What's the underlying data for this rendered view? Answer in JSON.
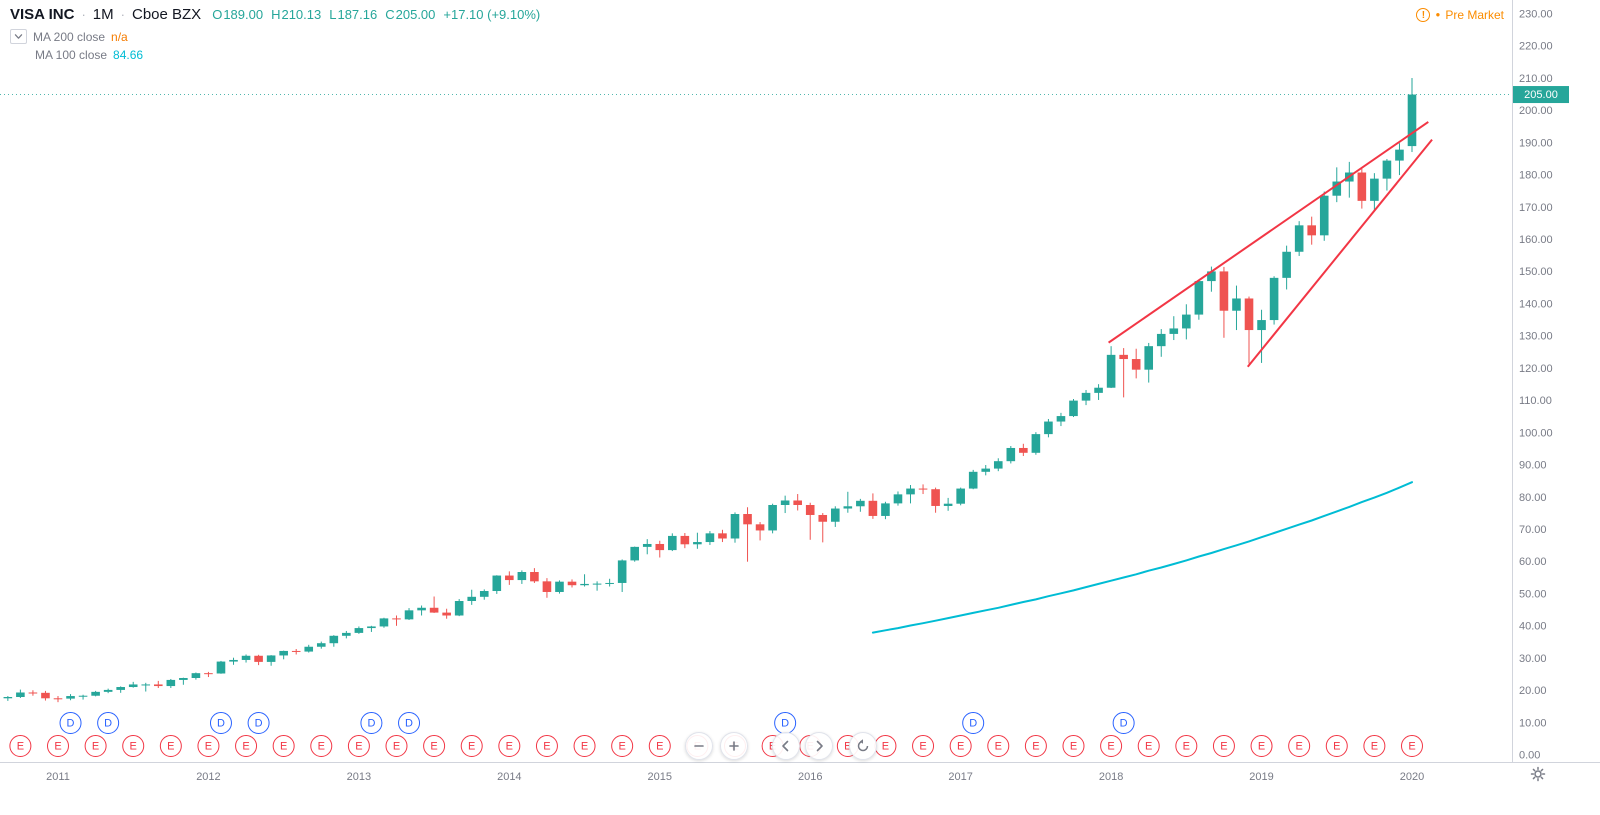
{
  "header": {
    "symbol_title": "VISA INC",
    "separator": "·",
    "interval": "1M",
    "exchange": "Cboe BZX",
    "ohlc": {
      "open_label": "O",
      "open": "189.00",
      "high_label": "H",
      "high": "210.13",
      "low_label": "L",
      "low": "187.16",
      "close_label": "C",
      "close": "205.00",
      "change": "+17.10 (+9.10%)",
      "value_color": "#26a69a"
    },
    "indicators": [
      {
        "label": "MA 200 close",
        "value": "n/a",
        "color": "#f57c00"
      },
      {
        "label": "MA 100 close",
        "value": "84.66",
        "color": "#00bcd4"
      }
    ],
    "premarket_label": "Pre Market",
    "premarket_color": "#fb8c00",
    "icons": {
      "warning_glyph": "!",
      "dot_glyph": "●"
    }
  },
  "axes": {
    "price_ticks": [
      "230.00",
      "220.00",
      "210.00",
      "200.00",
      "190.00",
      "180.00",
      "170.00",
      "160.00",
      "150.00",
      "140.00",
      "130.00",
      "120.00",
      "110.00",
      "100.00",
      "90.00",
      "80.00",
      "70.00",
      "60.00",
      "50.00",
      "40.00",
      "30.00",
      "20.00",
      "10.00",
      "0.00"
    ],
    "years": [
      {
        "label": "2011",
        "index": 4
      },
      {
        "label": "2012",
        "index": 16
      },
      {
        "label": "2013",
        "index": 28
      },
      {
        "label": "2014",
        "index": 40
      },
      {
        "label": "2015",
        "index": 52
      },
      {
        "label": "2016",
        "index": 64
      },
      {
        "label": "2017",
        "index": 76
      },
      {
        "label": "2018",
        "index": 88
      },
      {
        "label": "2019",
        "index": 100
      },
      {
        "label": "2020",
        "index": 112
      }
    ],
    "last_price": 205.0,
    "last_price_label": "205.00",
    "text_color": "#787b86"
  },
  "chart_data": {
    "type": "candlestick",
    "title": "VISA INC · 1M · Cboe BZX",
    "interval": "1M",
    "y_range": [
      0,
      230
    ],
    "up_color": "#26a69a",
    "down_color": "#ef5350",
    "trend_color": "#f23645",
    "candles": [
      [
        "2010-09",
        17.6,
        18.3,
        16.8,
        18.0
      ],
      [
        "2010-10",
        18.0,
        20.3,
        17.7,
        19.4
      ],
      [
        "2010-11",
        19.4,
        20.1,
        18.4,
        19.3
      ],
      [
        "2010-12",
        19.3,
        19.9,
        16.9,
        17.6
      ],
      [
        "2011-01",
        17.6,
        18.3,
        16.4,
        17.5
      ],
      [
        "2011-02",
        17.5,
        18.9,
        17.0,
        18.3
      ],
      [
        "2011-03",
        18.3,
        18.7,
        17.2,
        18.4
      ],
      [
        "2011-04",
        18.4,
        19.9,
        18.2,
        19.6
      ],
      [
        "2011-05",
        19.6,
        20.6,
        19.2,
        20.2
      ],
      [
        "2011-06",
        20.2,
        21.3,
        19.3,
        21.1
      ],
      [
        "2011-07",
        21.1,
        22.7,
        20.9,
        21.9
      ],
      [
        "2011-08",
        21.9,
        22.4,
        19.7,
        21.9
      ],
      [
        "2011-09",
        21.9,
        23.0,
        20.8,
        21.4
      ],
      [
        "2011-10",
        21.4,
        23.6,
        20.8,
        23.3
      ],
      [
        "2011-11",
        23.3,
        24.0,
        21.8,
        23.9
      ],
      [
        "2011-12",
        23.9,
        25.6,
        23.4,
        25.4
      ],
      [
        "2012-01",
        25.4,
        25.8,
        24.2,
        25.3
      ],
      [
        "2012-02",
        25.3,
        29.2,
        25.2,
        29.0
      ],
      [
        "2012-03",
        29.0,
        30.2,
        28.0,
        29.5
      ],
      [
        "2012-04",
        29.5,
        31.2,
        28.7,
        30.8
      ],
      [
        "2012-05",
        30.8,
        31.1,
        27.9,
        28.9
      ],
      [
        "2012-06",
        28.9,
        31.0,
        27.7,
        30.9
      ],
      [
        "2012-07",
        30.9,
        32.4,
        29.7,
        32.3
      ],
      [
        "2012-08",
        32.3,
        32.9,
        31.2,
        32.1
      ],
      [
        "2012-09",
        32.1,
        34.2,
        31.8,
        33.6
      ],
      [
        "2012-10",
        33.6,
        35.2,
        33.0,
        34.7
      ],
      [
        "2012-11",
        34.7,
        37.2,
        33.6,
        37.0
      ],
      [
        "2012-12",
        37.0,
        38.5,
        36.2,
        37.9
      ],
      [
        "2013-01",
        37.9,
        39.9,
        37.6,
        39.4
      ],
      [
        "2013-02",
        39.4,
        40.1,
        38.2,
        39.9
      ],
      [
        "2013-03",
        39.9,
        42.6,
        39.5,
        42.4
      ],
      [
        "2013-04",
        42.4,
        43.3,
        40.1,
        42.1
      ],
      [
        "2013-05",
        42.1,
        45.6,
        41.9,
        44.9
      ],
      [
        "2013-06",
        44.9,
        46.4,
        43.3,
        45.7
      ],
      [
        "2013-07",
        45.7,
        49.2,
        44.1,
        44.2
      ],
      [
        "2013-08",
        44.2,
        45.4,
        42.3,
        43.3
      ],
      [
        "2013-09",
        43.3,
        48.4,
        43.1,
        47.8
      ],
      [
        "2013-10",
        47.8,
        51.3,
        46.6,
        49.1
      ],
      [
        "2013-11",
        49.1,
        51.4,
        48.2,
        50.9
      ],
      [
        "2013-12",
        50.9,
        55.8,
        50.0,
        55.7
      ],
      [
        "2014-01",
        55.7,
        57.0,
        52.8,
        54.3
      ],
      [
        "2014-02",
        54.3,
        57.3,
        53.1,
        56.8
      ],
      [
        "2014-03",
        56.8,
        58.0,
        53.4,
        53.9
      ],
      [
        "2014-04",
        53.9,
        54.9,
        48.8,
        50.6
      ],
      [
        "2014-05",
        50.6,
        54.2,
        50.1,
        53.8
      ],
      [
        "2014-06",
        53.8,
        54.5,
        52.0,
        52.7
      ],
      [
        "2014-07",
        52.7,
        56.1,
        52.3,
        53.1
      ],
      [
        "2014-08",
        53.1,
        53.9,
        51.0,
        53.2
      ],
      [
        "2014-09",
        53.2,
        54.7,
        52.3,
        53.4
      ],
      [
        "2014-10",
        53.4,
        60.7,
        50.6,
        60.4
      ],
      [
        "2014-11",
        60.4,
        64.7,
        60.0,
        64.6
      ],
      [
        "2014-12",
        64.6,
        67.0,
        62.3,
        65.5
      ],
      [
        "2015-01",
        65.5,
        66.5,
        61.3,
        63.6
      ],
      [
        "2015-02",
        63.6,
        68.8,
        63.3,
        68.0
      ],
      [
        "2015-03",
        68.0,
        68.9,
        64.2,
        65.4
      ],
      [
        "2015-04",
        65.4,
        69.0,
        64.0,
        66.1
      ],
      [
        "2015-05",
        66.1,
        69.5,
        65.2,
        68.8
      ],
      [
        "2015-06",
        68.8,
        69.9,
        66.1,
        67.2
      ],
      [
        "2015-07",
        67.2,
        75.3,
        65.9,
        74.8
      ],
      [
        "2015-08",
        74.8,
        76.9,
        60.0,
        71.6
      ],
      [
        "2015-09",
        71.6,
        72.3,
        66.6,
        69.7
      ],
      [
        "2015-10",
        69.7,
        78.0,
        68.8,
        77.6
      ],
      [
        "2015-11",
        77.6,
        80.5,
        75.1,
        79.0
      ],
      [
        "2015-12",
        79.0,
        81.0,
        75.9,
        77.6
      ],
      [
        "2016-01",
        77.6,
        78.3,
        66.8,
        74.5
      ],
      [
        "2016-02",
        74.5,
        75.1,
        66.0,
        72.4
      ],
      [
        "2016-03",
        72.4,
        77.2,
        70.8,
        76.5
      ],
      [
        "2016-04",
        76.5,
        81.7,
        75.2,
        77.2
      ],
      [
        "2016-05",
        77.2,
        79.5,
        75.5,
        78.9
      ],
      [
        "2016-06",
        78.9,
        81.2,
        73.3,
        74.2
      ],
      [
        "2016-07",
        74.2,
        78.6,
        73.2,
        78.1
      ],
      [
        "2016-08",
        78.1,
        81.8,
        77.4,
        80.9
      ],
      [
        "2016-09",
        80.9,
        83.8,
        78.1,
        82.7
      ],
      [
        "2016-10",
        82.7,
        84.0,
        81.0,
        82.5
      ],
      [
        "2016-11",
        82.5,
        83.0,
        75.2,
        77.3
      ],
      [
        "2016-12",
        77.3,
        79.8,
        75.8,
        78.0
      ],
      [
        "2017-01",
        78.0,
        83.0,
        77.5,
        82.7
      ],
      [
        "2017-02",
        82.7,
        88.5,
        82.5,
        87.9
      ],
      [
        "2017-03",
        87.9,
        90.0,
        86.8,
        88.9
      ],
      [
        "2017-04",
        88.9,
        92.1,
        88.1,
        91.2
      ],
      [
        "2017-05",
        91.2,
        95.9,
        90.5,
        95.3
      ],
      [
        "2017-06",
        95.3,
        96.6,
        92.8,
        93.8
      ],
      [
        "2017-07",
        93.8,
        100.2,
        93.2,
        99.6
      ],
      [
        "2017-08",
        99.6,
        104.3,
        98.6,
        103.5
      ],
      [
        "2017-09",
        103.5,
        106.2,
        102.1,
        105.2
      ],
      [
        "2017-10",
        105.2,
        110.5,
        104.9,
        110.0
      ],
      [
        "2017-11",
        110.0,
        113.3,
        108.6,
        112.4
      ],
      [
        "2017-12",
        112.4,
        115.1,
        110.2,
        114.0
      ],
      [
        "2018-01",
        114.0,
        126.9,
        113.9,
        124.2
      ],
      [
        "2018-02",
        124.2,
        126.3,
        111.0,
        122.9
      ],
      [
        "2018-03",
        122.9,
        126.1,
        116.9,
        119.6
      ],
      [
        "2018-04",
        119.6,
        127.9,
        115.6,
        126.9
      ],
      [
        "2018-05",
        126.9,
        132.2,
        123.6,
        130.7
      ],
      [
        "2018-06",
        130.7,
        136.2,
        128.8,
        132.4
      ],
      [
        "2018-07",
        132.4,
        139.9,
        129.0,
        136.7
      ],
      [
        "2018-08",
        136.7,
        147.5,
        135.1,
        147.1
      ],
      [
        "2018-09",
        147.1,
        151.6,
        143.8,
        150.1
      ],
      [
        "2018-10",
        150.1,
        151.5,
        129.5,
        137.9
      ],
      [
        "2018-11",
        137.9,
        145.7,
        131.9,
        141.7
      ],
      [
        "2018-12",
        141.7,
        142.3,
        121.5,
        131.9
      ],
      [
        "2019-01",
        131.9,
        138.2,
        121.7,
        135.0
      ],
      [
        "2019-02",
        135.0,
        148.6,
        133.6,
        148.1
      ],
      [
        "2019-03",
        148.1,
        158.1,
        144.5,
        156.2
      ],
      [
        "2019-04",
        156.2,
        165.7,
        154.9,
        164.4
      ],
      [
        "2019-05",
        164.4,
        167.1,
        158.4,
        161.3
      ],
      [
        "2019-06",
        161.3,
        174.9,
        159.6,
        173.6
      ],
      [
        "2019-07",
        173.6,
        182.4,
        171.6,
        178.0
      ],
      [
        "2019-08",
        178.0,
        184.1,
        173.0,
        180.8
      ],
      [
        "2019-09",
        180.8,
        182.0,
        169.6,
        172.0
      ],
      [
        "2019-10",
        172.0,
        180.6,
        168.8,
        178.9
      ],
      [
        "2019-11",
        178.9,
        185.0,
        175.2,
        184.5
      ],
      [
        "2019-12",
        184.5,
        189.9,
        180.0,
        187.9
      ],
      [
        "2020-01",
        189.0,
        210.13,
        187.16,
        205.0
      ]
    ],
    "ma100": {
      "name": "MA 100 close",
      "color": "#00bcd4",
      "start_index": 69,
      "values": [
        38.0,
        38.7,
        39.4,
        40.2,
        40.9,
        41.7,
        42.5,
        43.3,
        44.1,
        44.9,
        45.7,
        46.6,
        47.5,
        48.3,
        49.3,
        50.2,
        51.1,
        52.1,
        53.1,
        54.1,
        55.1,
        56.1,
        57.2,
        58.2,
        59.3,
        60.4,
        61.6,
        62.7,
        63.9,
        65.1,
        66.3,
        67.6,
        68.9,
        70.2,
        71.5,
        72.8,
        74.2,
        75.6,
        77.0,
        78.5,
        79.9,
        81.4,
        83.0,
        84.66
      ]
    },
    "trendlines": [
      {
        "i1": 87.8,
        "p1": 128.0,
        "i2": 113.3,
        "p2": 196.5
      },
      {
        "i1": 98.9,
        "p1": 120.5,
        "i2": 113.6,
        "p2": 191.0
      }
    ],
    "markers": {
      "earnings_letter": "E",
      "earnings_color": "#f23645",
      "earnings_indices": [
        1,
        4,
        7,
        10,
        13,
        16,
        19,
        22,
        25,
        28,
        31,
        34,
        37,
        40,
        43,
        46,
        49,
        52,
        55,
        58,
        61,
        64,
        67,
        70,
        73,
        76,
        79,
        82,
        85,
        88,
        91,
        94,
        97,
        100,
        103,
        106,
        109,
        112
      ],
      "dividend_letter": "D",
      "dividend_color": "#2962ff",
      "dividend_indices": [
        5,
        8,
        17,
        20,
        29,
        32,
        62,
        77,
        89
      ]
    }
  }
}
